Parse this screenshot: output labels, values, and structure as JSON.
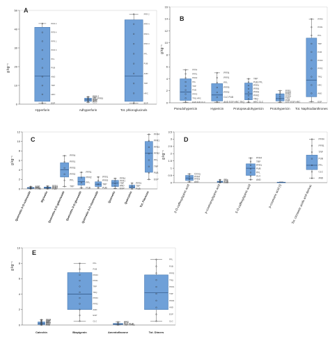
{
  "panels": [
    {
      "id": "A",
      "ylabel": "g kg⁻¹",
      "yticks": [
        "0",
        "10",
        "20",
        "30",
        "40",
        "50"
      ],
      "categories": [
        "Hyperforin",
        "Adhyperforin",
        "Tot. phloroglucinols"
      ],
      "point_labels": [
        [
          "PFR 2",
          "PFR 4",
          "PFR 1",
          "PFR 3",
          "PFL",
          "PUB",
          "AND",
          "TRP",
          "HRC",
          "EGP"
        ],
        [
          "PFR 2",
          "TRP",
          "PFL-PFR3",
          "AND",
          "EGP",
          "HRC",
          "CLC"
        ],
        [
          "PFR 2",
          "PFR 4",
          "PFR 1",
          "PFR 3",
          "PFL",
          "PUB",
          "AND",
          "TRP",
          "HRC",
          "EGP"
        ]
      ]
    },
    {
      "id": "B",
      "ylabel": "g kg⁻¹",
      "yticks": [
        "0",
        "2",
        "4",
        "6",
        "8",
        "10",
        "12",
        "14",
        "16"
      ],
      "categories": [
        "Pseudohypericin",
        "Hypericin",
        "Protopseudohypericin",
        "Protohypericin",
        "Tot. Naphtodianthrones"
      ],
      "point_labels": [
        [
          "PFR4",
          "PFR1",
          "PFR2",
          "PFL",
          "TRP",
          "PUB",
          "PFR3",
          "TRQ HRC",
          "EGP AND CLC"
        ],
        [
          "PFR4",
          "PFR1",
          "PFL",
          "PFR3",
          "PFR2",
          "CLC PUB",
          "AND EGP HRC TRQ"
        ],
        [
          "TRP",
          "PUB PFL",
          "PFR1",
          "PFR4",
          "PFR3",
          "PFR2",
          "TRQ",
          "HRC CLC"
        ],
        [
          "PFR1",
          "PFR4",
          "PFR2",
          "PFR3",
          "TRQ",
          "PUB",
          "CLC EGP HRC"
        ],
        [
          "PFR4",
          "PFR1",
          "PFL",
          "TRP",
          "PUB",
          "PFR3",
          "PFR2",
          "TRQ",
          "HRC",
          "AND",
          "EGP"
        ]
      ]
    },
    {
      "id": "C",
      "ylabel": "g kg⁻¹",
      "yticks": [
        "0",
        "2",
        "4",
        "6",
        "8",
        "10",
        "12"
      ],
      "categories": [
        "Quercetin-3-O-rutinoside",
        "Myricetin",
        "Quercetin-3-O-galactoside",
        "Quercetin-3-O-glucoside",
        "Quercetin-3-O-rhamnoside",
        "Quercetin",
        "Quercetrin",
        "Tot. Flavones"
      ],
      "point_labels": [
        [
          "EGP",
          "CLC",
          "PFL",
          "PFR1",
          "PFR2"
        ],
        [
          "PFR4",
          "PFR1",
          "PFR2",
          "PUB"
        ],
        [
          "PFR4",
          "PFR1",
          "PFR3",
          "PFR2",
          "PFL",
          "TRP"
        ],
        [
          "PFR1",
          "PFR2",
          "PFL",
          "PUB"
        ],
        [
          "PFR1",
          "PFR2",
          "TRP",
          "PUB"
        ],
        [
          "PFR4",
          "PFR1",
          "TRP",
          "AND",
          "EGP"
        ],
        [
          "PFR1",
          "TRP",
          "PUB"
        ],
        [
          "PFR4",
          "PFR1",
          "PFR3",
          "PFR2",
          "PFL",
          "TRP",
          "PUB",
          "EGP"
        ]
      ]
    },
    {
      "id": "D",
      "ylabel": "g kg⁻¹",
      "yticks": [
        "0",
        "0.5",
        "1",
        "1.5",
        "2",
        "2.5",
        "3",
        "3.5"
      ],
      "categories": [
        "3-O-caffeoylquinic acid",
        "p-coumaroylquinic acid",
        "5-O-caffeoylquinic acid",
        "p-coumaric acid (t)",
        "Tot. cinnamic acids and derivat."
      ],
      "point_labels": [
        [
          "Cmnq",
          "PFR4",
          "PFR3",
          "AND"
        ],
        [
          "PFL",
          "TRP",
          "PUB",
          "AND"
        ],
        [
          "PFR4",
          "TRP",
          "PFR1",
          "PUB",
          "PFL",
          "CLC",
          "AND"
        ],
        [],
        [
          "PFR4",
          "PFR1",
          "TRP",
          "PUB",
          "PFL",
          "CLC",
          "AND"
        ]
      ]
    },
    {
      "id": "E",
      "ylabel": "g kg⁻¹",
      "yticks": [
        "0",
        "2",
        "4",
        "6",
        "8",
        "10"
      ],
      "categories": [
        "Catechin",
        "Biapigenin",
        "Amentoflavone",
        "Tot. Dimers"
      ],
      "point_labels": [
        [
          "PFR3",
          "PFR4",
          "AND",
          "TRP",
          "HRC",
          "PFR2",
          "PFL",
          "PFR1",
          "EGP",
          "CLC",
          "PUB"
        ],
        [
          "PFL",
          "PUB",
          "PFR3",
          "PFR1",
          "TRP",
          "TRQ",
          "PFR4",
          "PFR2",
          "AND",
          "EGP",
          "CLC"
        ],
        [
          "HRC",
          "EGP",
          "CLC PUB",
          "TRP PFR3"
        ],
        [
          "PFL",
          "PUB",
          "PFR3",
          "TRQ",
          "PFR1",
          "TRP",
          "PFR2",
          "AND",
          "EGP",
          "CLC"
        ]
      ]
    }
  ],
  "chart_data": [
    {
      "type": "box",
      "panel": "A",
      "ylabel": "g kg⁻¹",
      "ylim": [
        0,
        50
      ],
      "categories": [
        "Hyperforin",
        "Adhyperforin",
        "Tot. phloroglucinols"
      ],
      "boxes": [
        {
          "min": 0.5,
          "q1": 1.5,
          "median": 15,
          "q3": 41,
          "max": 43
        },
        {
          "min": 1.0,
          "q1": 1.5,
          "median": 2.3,
          "q3": 3.2,
          "max": 4.0
        },
        {
          "min": 0.5,
          "q1": 1.5,
          "median": 15,
          "q3": 45,
          "max": 48
        }
      ]
    },
    {
      "type": "box",
      "panel": "B",
      "ylabel": "g kg⁻¹",
      "ylim": [
        0,
        16
      ],
      "categories": [
        "Pseudohypericin",
        "Hypericin",
        "Protopseudohypericin",
        "Protohypericin",
        "Tot. Naphtodianthrones"
      ],
      "boxes": [
        {
          "min": 0.1,
          "q1": 0.4,
          "median": 1.8,
          "q3": 4.0,
          "max": 5.5
        },
        {
          "min": 0.1,
          "q1": 0.3,
          "median": 1.3,
          "q3": 3.2,
          "max": 5.0
        },
        {
          "min": 0.1,
          "q1": 0.5,
          "median": 1.5,
          "q3": 3.3,
          "max": 4.0
        },
        {
          "min": 0.1,
          "q1": 0.3,
          "median": 0.7,
          "q3": 1.5,
          "max": 2.0
        },
        {
          "min": 0.2,
          "q1": 1.0,
          "median": 3.8,
          "q3": 10.8,
          "max": 14.0
        }
      ]
    },
    {
      "type": "box",
      "panel": "C",
      "ylabel": "g kg⁻¹",
      "ylim": [
        0,
        12
      ],
      "categories": [
        "Quercetin-3-O-rutinoside",
        "Myricetin",
        "Quercetin-3-O-galactoside",
        "Quercetin-3-O-glucoside",
        "Quercetin-3-O-rhamnoside",
        "Quercetin",
        "Quercetrin",
        "Tot. Flavones"
      ],
      "boxes": [
        {
          "min": 0.0,
          "q1": 0.1,
          "median": 0.2,
          "q3": 0.3,
          "max": 0.5
        },
        {
          "min": 0.0,
          "q1": 0.1,
          "median": 0.2,
          "q3": 0.4,
          "max": 0.6
        },
        {
          "min": 0.5,
          "q1": 2.5,
          "median": 4.0,
          "q3": 5.5,
          "max": 7.0
        },
        {
          "min": 0.2,
          "q1": 0.8,
          "median": 1.5,
          "q3": 2.5,
          "max": 3.5
        },
        {
          "min": 0.2,
          "q1": 0.5,
          "median": 1.0,
          "q3": 1.5,
          "max": 2.5
        },
        {
          "min": 0.1,
          "q1": 0.5,
          "median": 1.2,
          "q3": 1.8,
          "max": 2.2
        },
        {
          "min": 0.0,
          "q1": 0.2,
          "median": 0.4,
          "q3": 0.8,
          "max": 1.2
        },
        {
          "min": 2.0,
          "q1": 3.5,
          "median": 7.5,
          "q3": 10.0,
          "max": 11.5
        }
      ]
    },
    {
      "type": "box",
      "panel": "D",
      "ylabel": "g kg⁻¹",
      "ylim": [
        0,
        3.5
      ],
      "categories": [
        "3-O-caffeoylquinic acid",
        "p-coumaroylquinic acid",
        "5-O-caffeoylquinic acid",
        "p-coumaric acid (t)",
        "Tot. cinnamic acids and derivat."
      ],
      "boxes": [
        {
          "min": 0.05,
          "q1": 0.15,
          "median": 0.3,
          "q3": 0.5,
          "max": 0.6
        },
        {
          "min": 0.0,
          "q1": 0.02,
          "median": 0.05,
          "q3": 0.1,
          "max": 0.2
        },
        {
          "min": 0.2,
          "q1": 0.5,
          "median": 1.0,
          "q3": 1.3,
          "max": 1.7
        },
        {
          "min": 0.0,
          "q1": 0.01,
          "median": 0.02,
          "q3": 0.03,
          "max": 0.05
        },
        {
          "min": 0.3,
          "q1": 0.9,
          "median": 1.2,
          "q3": 1.9,
          "max": 3.0
        }
      ]
    },
    {
      "type": "box",
      "panel": "E",
      "ylabel": "g kg⁻¹",
      "ylim": [
        0,
        10
      ],
      "categories": [
        "Catechin",
        "Biapigenin",
        "Amentoflavone",
        "Tot. Dimers"
      ],
      "boxes": [
        {
          "min": 0.0,
          "q1": 0.05,
          "median": 0.2,
          "q3": 0.4,
          "max": 0.7
        },
        {
          "min": 0.5,
          "q1": 2.0,
          "median": 4.0,
          "q3": 6.8,
          "max": 8.0
        },
        {
          "min": 0.0,
          "q1": 0.05,
          "median": 0.1,
          "q3": 0.2,
          "max": 0.4
        },
        {
          "min": 0.5,
          "q1": 2.0,
          "median": 4.2,
          "q3": 6.5,
          "max": 8.5
        }
      ]
    }
  ]
}
